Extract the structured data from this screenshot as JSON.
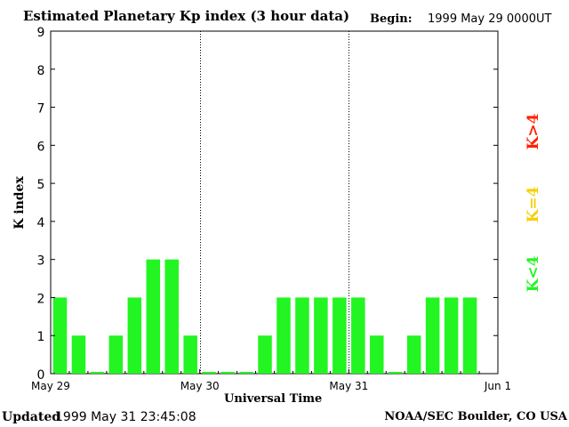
{
  "header": {
    "title": "Estimated Planetary Kp index (3 hour data)",
    "begin_label": "Begin:",
    "begin_value": "1999 May 29 0000UT"
  },
  "footer": {
    "updated_label": "Updated",
    "updated_value": "1999 May 31 23:45:08",
    "source": "NOAA/SEC Boulder, CO USA"
  },
  "legend": {
    "high": {
      "text": "K>4",
      "color": "#ff2000"
    },
    "mid": {
      "text": "K=4",
      "color": "#f5d000"
    },
    "low": {
      "text": "K<4",
      "color": "#22f522"
    }
  },
  "chart_data": {
    "type": "bar",
    "title": "Estimated Planetary Kp index (3 hour data)",
    "xlabel": "Universal Time",
    "ylabel": "K index",
    "ylim": [
      0,
      9
    ],
    "yticks": [
      "0",
      "1",
      "2",
      "3",
      "4",
      "5",
      "6",
      "7",
      "8",
      "9"
    ],
    "xticks": [
      "May 29",
      "May 30",
      "May 31",
      "Jun 1"
    ],
    "bar_color": "#22f522",
    "day_separators": [
      "May 30",
      "May 31"
    ],
    "series": [
      {
        "values": [
          2,
          1,
          0,
          1,
          2,
          3,
          3,
          1,
          0,
          0,
          0,
          1,
          2,
          2,
          2,
          2,
          2,
          1,
          0,
          1,
          2,
          2,
          2
        ]
      }
    ]
  }
}
